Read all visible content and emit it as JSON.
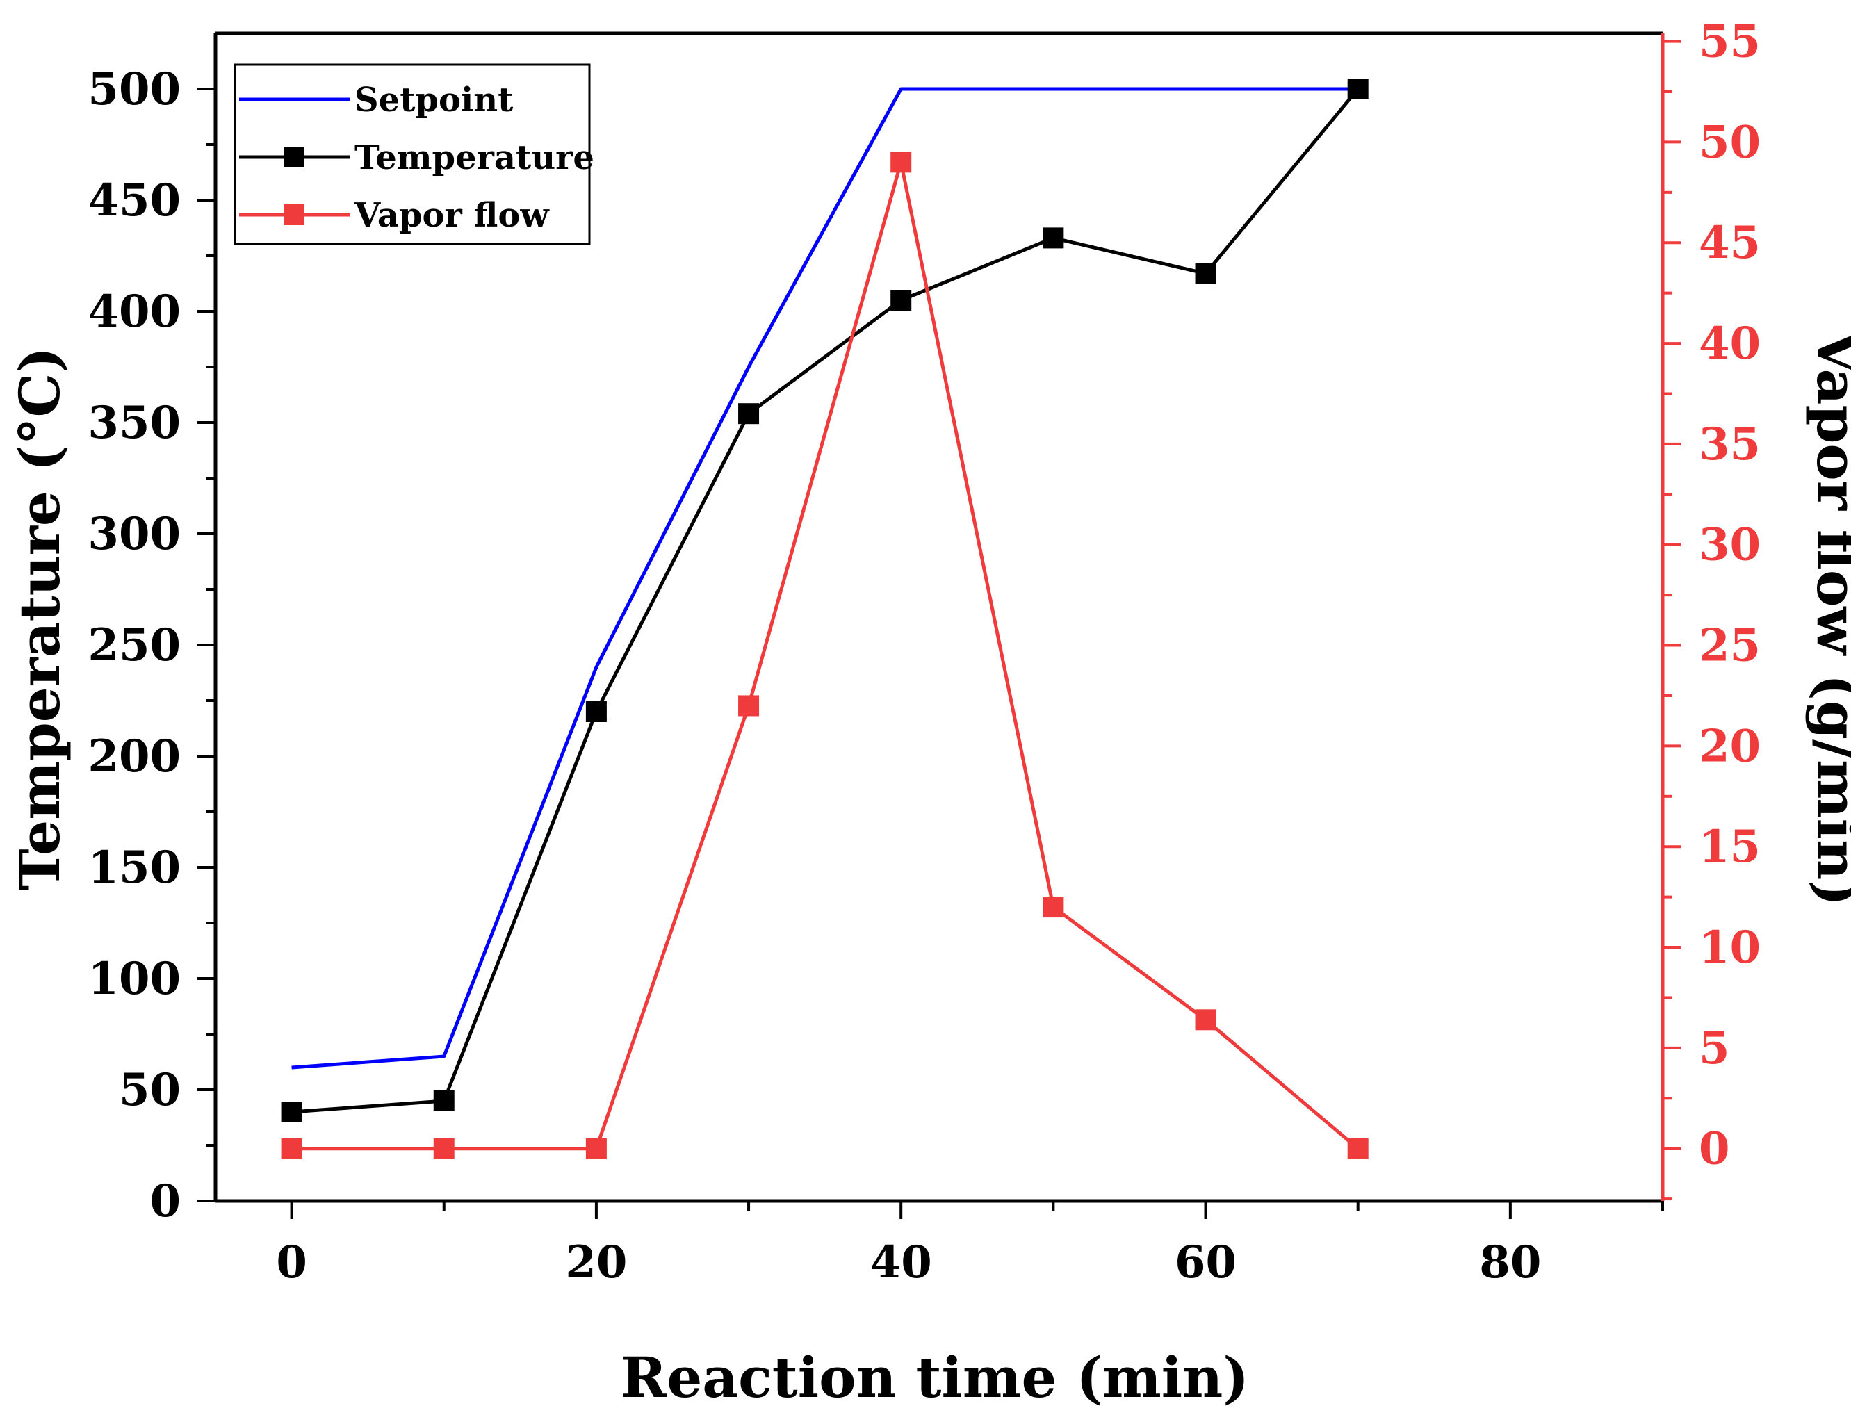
{
  "chart_data": {
    "type": "line",
    "x": [
      0,
      10,
      20,
      30,
      40,
      50,
      60,
      70
    ],
    "series": [
      {
        "name": "Setpoint",
        "axis": "left",
        "color": "#0000ff",
        "marker": "none",
        "x": [
          0,
          10,
          20,
          30,
          40,
          70
        ],
        "values": [
          60,
          65,
          240,
          375,
          500,
          500
        ]
      },
      {
        "name": "Temperature",
        "axis": "left",
        "color": "#000000",
        "marker": "square",
        "x": [
          0,
          10,
          20,
          30,
          40,
          50,
          60,
          70
        ],
        "values": [
          40,
          45,
          220,
          354,
          405,
          433,
          417,
          500
        ]
      },
      {
        "name": "Vapor flow",
        "axis": "right",
        "color": "#ef3b3b",
        "marker": "square",
        "x": [
          0,
          10,
          20,
          30,
          40,
          50,
          60,
          70
        ],
        "values": [
          0,
          0,
          0,
          22,
          49,
          12,
          6.4,
          0
        ]
      }
    ],
    "xlabel": "Reaction time (min)",
    "ylabel": "Temperature (°C)",
    "y2label": "Vapor flow (g/min)",
    "xlim": [
      -5,
      90
    ],
    "ylim": [
      0,
      525
    ],
    "y2lim": [
      -2.6,
      55.4
    ],
    "xticks": [
      0,
      20,
      40,
      60,
      80
    ],
    "xticks_minor": [
      10,
      30,
      50,
      70,
      90
    ],
    "yticks": [
      0,
      50,
      100,
      150,
      200,
      250,
      300,
      350,
      400,
      450,
      500
    ],
    "y2ticks": [
      0,
      5,
      10,
      15,
      20,
      25,
      30,
      35,
      40,
      45,
      50,
      55
    ],
    "legend_position": "top-left",
    "grid": false,
    "axis_colors": {
      "left": "#000000",
      "right": "#ef3b3b",
      "bottom": "#000000"
    }
  }
}
